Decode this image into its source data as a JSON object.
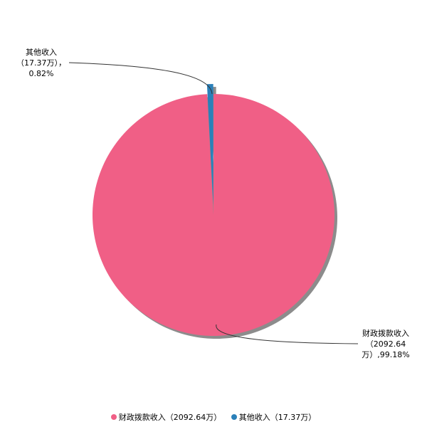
{
  "chart_data": {
    "type": "pie",
    "unit": "万",
    "slices": [
      {
        "name": "财政拨款收入",
        "value": 2092.64,
        "percent": 99.18,
        "color": "#f05f86",
        "label_lines": [
          "财政拨款收入",
          "（2092.64",
          "万）,99.18%"
        ],
        "legend": "财政拨款收入（2092.64万）"
      },
      {
        "name": "其他收入",
        "value": 17.37,
        "percent": 0.82,
        "color": "#2a80b9",
        "exploded": true,
        "label_lines": [
          "其他收入",
          "（17.37万），",
          "0.82%"
        ],
        "legend": "其他收入（17.37万）"
      }
    ],
    "shadow_color": "#8c8c8c",
    "legend_position": "bottom"
  }
}
